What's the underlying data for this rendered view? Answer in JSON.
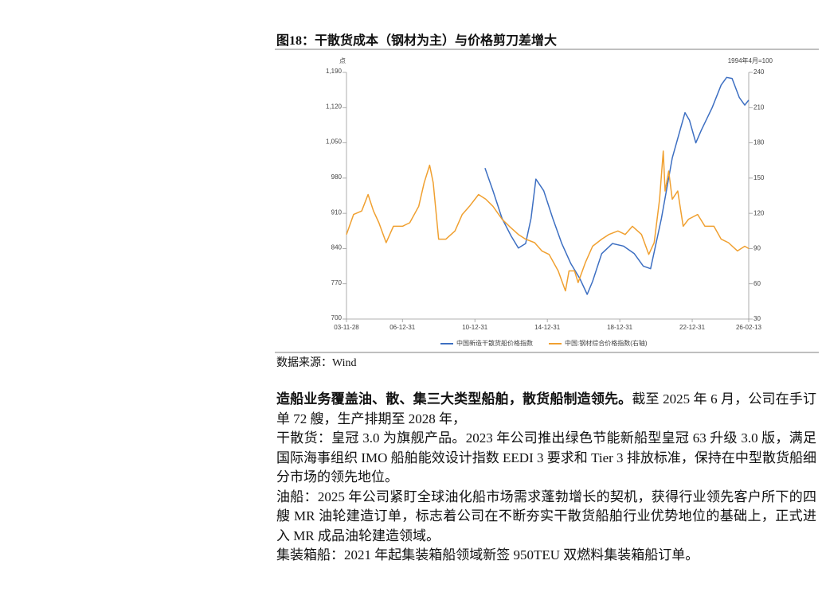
{
  "figure": {
    "title": "图18：干散货成本（钢材为主）与价格剪刀差增大",
    "source": "数据来源：Wind",
    "chart_data": {
      "type": "line",
      "y_label": "点",
      "y2_label": "1994年4月=100",
      "xlim": [
        2003.91,
        2026.12
      ],
      "xticks": [
        {
          "value": 2003.91,
          "label": "03-11-28"
        },
        {
          "value": 2007.0,
          "label": "06-12-31"
        },
        {
          "value": 2011.0,
          "label": "10-12-31"
        },
        {
          "value": 2015.0,
          "label": "14-12-31"
        },
        {
          "value": 2019.0,
          "label": "18-12-31"
        },
        {
          "value": 2023.0,
          "label": "22-12-31"
        },
        {
          "value": 2026.12,
          "label": "26-02-13"
        }
      ],
      "ylim": [
        700,
        1190
      ],
      "yticks": [
        700,
        770,
        840,
        910,
        980,
        {
          "value": 1050,
          "label": "1,050"
        },
        {
          "value": 1120,
          "label": "1,120"
        },
        {
          "value": 1190,
          "label": "1,190"
        }
      ],
      "y2lim": [
        30,
        240
      ],
      "y2ticks": [
        30,
        60,
        90,
        120,
        150,
        180,
        210,
        240
      ],
      "series": [
        {
          "name": "中国新造干散货船价格指数",
          "color": "#3d6fc2",
          "x": [
            2011.56,
            2012.0,
            2012.5,
            2013.0,
            2013.4,
            2013.8,
            2014.1,
            2014.37,
            2014.8,
            2015.3,
            2015.8,
            2016.3,
            2016.8,
            2017.2,
            2017.5,
            2018.0,
            2018.6,
            2019.2,
            2019.8,
            2020.3,
            2020.7,
            2021.3,
            2021.9,
            2022.6,
            2022.85,
            2023.2,
            2023.5,
            2024.1,
            2024.6,
            2024.9,
            2025.2,
            2025.6,
            2025.9,
            2026.12
          ],
          "values": [
            1000,
            955,
            900,
            865,
            841,
            850,
            900,
            978,
            955,
            900,
            850,
            810,
            780,
            749,
            775,
            830,
            850,
            845,
            830,
            805,
            800,
            900,
            1020,
            1110,
            1095,
            1050,
            1075,
            1120,
            1165,
            1180,
            1178,
            1140,
            1125,
            1135
          ]
        },
        {
          "name": "中国:钢材综合价格指数(右轴)",
          "color": "#f0a030",
          "axis": "y2",
          "x": [
            2003.91,
            2004.3,
            2004.75,
            2005.1,
            2005.4,
            2005.7,
            2006.1,
            2006.5,
            2007.0,
            2007.4,
            2007.9,
            2008.2,
            2008.5,
            2008.7,
            2009.0,
            2009.4,
            2009.9,
            2010.3,
            2010.7,
            2011.2,
            2011.6,
            2012.0,
            2012.5,
            2012.9,
            2013.4,
            2013.8,
            2014.3,
            2014.7,
            2015.1,
            2015.6,
            2016.0,
            2016.2,
            2016.5,
            2016.7,
            2017.1,
            2017.5,
            2018.0,
            2018.4,
            2018.9,
            2019.3,
            2019.7,
            2020.2,
            2020.6,
            2020.9,
            2021.2,
            2021.4,
            2021.5,
            2021.7,
            2021.9,
            2022.2,
            2022.5,
            2022.8,
            2023.3,
            2023.7,
            2024.2,
            2024.6,
            2025.0,
            2025.5,
            2025.9,
            2026.12
          ],
          "values": [
            102,
            119,
            122,
            136,
            122,
            112,
            95,
            109,
            109,
            112,
            126,
            146,
            161,
            146,
            98,
            98,
            105,
            119,
            126,
            136,
            132,
            126,
            115,
            109,
            102,
            98,
            95,
            88,
            85,
            71,
            54,
            71,
            71,
            61,
            78,
            92,
            98,
            102,
            105,
            102,
            109,
            102,
            85,
            95,
            132,
            173,
            139,
            156,
            132,
            139,
            109,
            115,
            119,
            109,
            109,
            98,
            95,
            88,
            92,
            90
          ]
        }
      ]
    }
  },
  "paragraphs": [
    {
      "bold": "造船业务覆盖油、散、集三大类型船舶，散货船制造领先。",
      "text": "截至 2025 年 6 月，公司在手订单 72 艘，生产排期至 2028 年，"
    },
    {
      "text": "干散货：皇冠 3.0 为旗舰产品。2023 年公司推出绿色节能新船型皇冠 63 升级 3.0 版，满足国际海事组织 IMO 船舶能效设计指数 EEDI 3 要求和 Tier 3 排放标准，保持在中型散货船细分市场的领先地位。"
    },
    {
      "text": "油船：2025 年公司紧盯全球油化船市场需求蓬勃增长的契机，获得行业领先客户所下的四艘 MR 油轮建造订单，标志着公司在不断夯实干散货船舶行业优势地位的基础上，正式进入 MR 成品油轮建造领域。"
    },
    {
      "text": "集装箱船：2021 年起集装箱船领域新签 950TEU 双燃料集装箱船订单。"
    }
  ]
}
